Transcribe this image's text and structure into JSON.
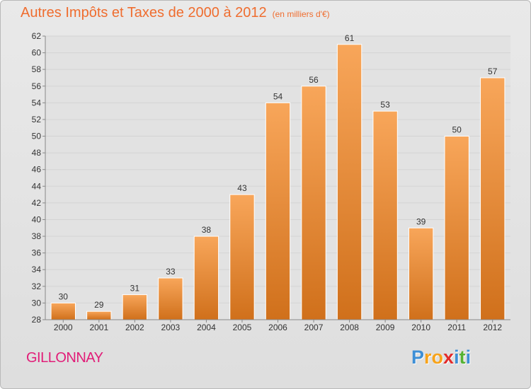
{
  "header": {
    "title": "Autres Impôts et Taxes de 2000 à 2012",
    "unit": "(en milliers d'€)"
  },
  "commune": "GILLONNAY",
  "logo": {
    "letters": [
      "P",
      "r",
      "o",
      "x",
      "i",
      "t",
      "i"
    ],
    "colors": [
      "#3d8fd6",
      "#f7a31b",
      "#f7a31b",
      "#e22b2b",
      "#3d8fd6",
      "#55b233",
      "#3d8fd6"
    ]
  },
  "colors": {
    "bar_top": "#f8a65a",
    "bar_bottom": "#d0701b",
    "grid": "#d4d4d4",
    "title": "#ef6d2f",
    "commune": "#e11d78"
  },
  "chart_data": {
    "type": "bar",
    "title": "Autres Impôts et Taxes de 2000 à 2012",
    "xlabel": "",
    "ylabel": "",
    "categories": [
      "2000",
      "2001",
      "2002",
      "2003",
      "2004",
      "2005",
      "2006",
      "2007",
      "2008",
      "2009",
      "2010",
      "2011",
      "2012"
    ],
    "values": [
      30,
      29,
      31,
      33,
      38,
      43,
      54,
      56,
      61,
      53,
      39,
      50,
      57
    ],
    "ylim": [
      28,
      62
    ],
    "ytick_step": 2,
    "grid": true
  }
}
